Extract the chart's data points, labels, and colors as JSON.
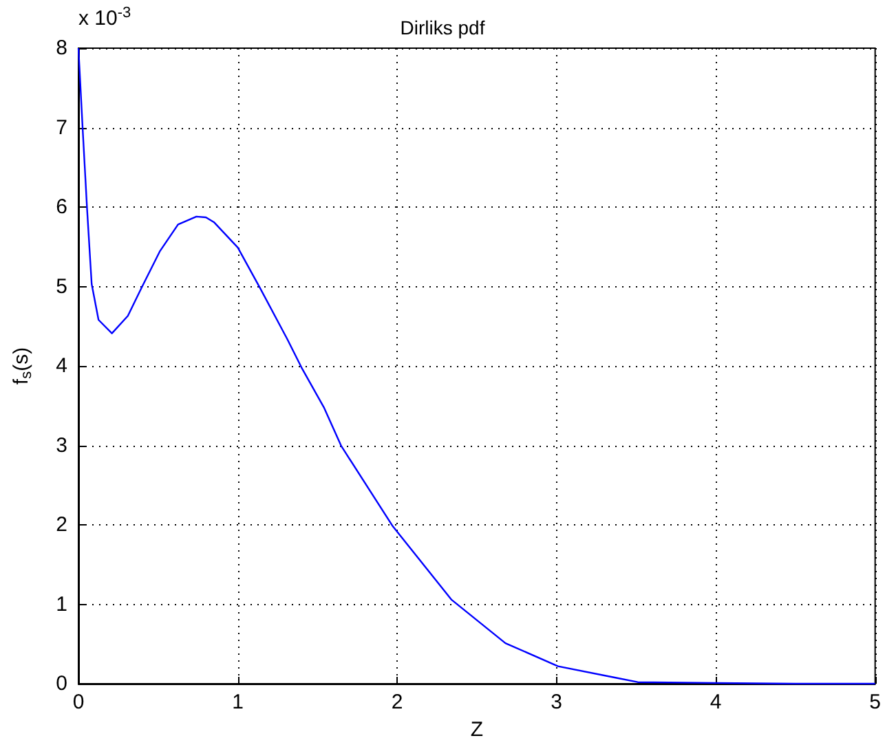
{
  "chart_data": {
    "type": "line",
    "title": "Dirliks pdf",
    "xlabel": "Z",
    "ylabel": "f$_{s}$(s)",
    "annotations": [
      "x 10$^{-3}$"
    ],
    "x": [
      0,
      0.026,
      0.054,
      0.083,
      0.126,
      0.21,
      0.31,
      0.4,
      0.51,
      0.625,
      0.74,
      0.8,
      0.85,
      1.0,
      1.14,
      1.31,
      1.4,
      1.54,
      1.65,
      1.97,
      2.34,
      2.68,
      3.01,
      3.36,
      3.51,
      4.0,
      4.5,
      5.0
    ],
    "series": [
      {
        "color": "#0000ff",
        "values": [
          8.0,
          7.0,
          5.98,
          5.03,
          4.58,
          4.41,
          4.63,
          5.0,
          5.44,
          5.78,
          5.88,
          5.87,
          5.81,
          5.49,
          4.98,
          4.34,
          3.98,
          3.48,
          2.99,
          1.99,
          1.06,
          0.51,
          0.22,
          0.08,
          0.02,
          0.01,
          0,
          0
        ]
      }
    ],
    "xlim": [
      0,
      5
    ],
    "xticks": [
      0,
      1,
      2,
      3,
      4,
      5
    ],
    "ylim": [
      0,
      8
    ],
    "yticks": [
      0,
      1,
      2,
      3,
      4,
      5,
      6,
      7,
      8
    ],
    "grid": true,
    "marker": "none",
    "line_style": "solid"
  }
}
